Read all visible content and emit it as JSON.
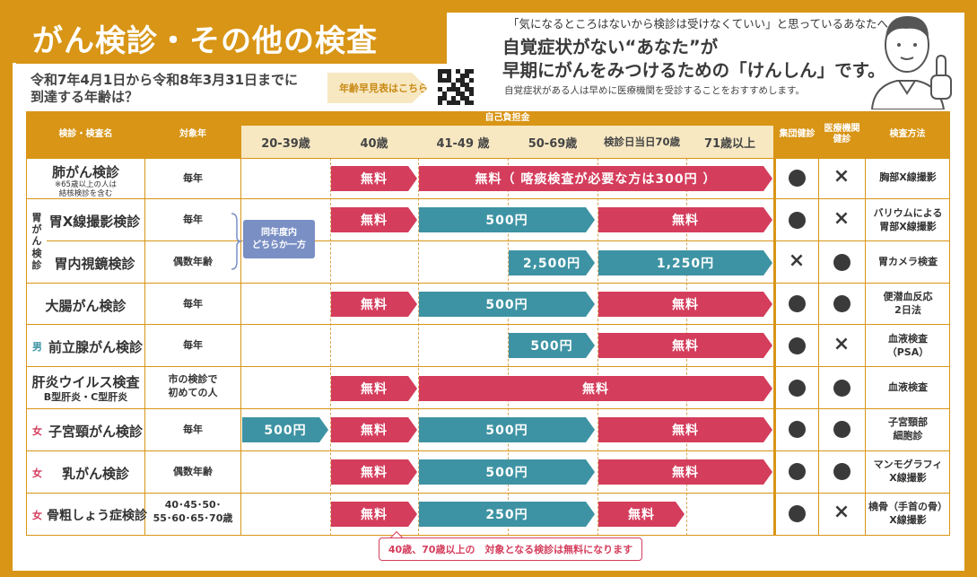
{
  "title": "がん検診・その他の検査",
  "header": {
    "top_line": "「気になるところはないから検診は受けなくていい」と思っているあなたへ",
    "line1": "自覚症状がない“あなた”が",
    "line2": "早期にがんをみつけるための「けんしん」です。",
    "note": "自覚症状がある人は早めに医療機関を受診することをおすすめします。"
  },
  "question": {
    "line1": "令和7年4月1日から令和8年3月31日までに",
    "line2": "到達する年齢は？"
  },
  "age_table_link": "年齢早見表はこちら",
  "table_header": {
    "exam_name": "検診・検査名",
    "target_year": "対象年",
    "self_pay": "自己負担金",
    "group": "集団健診",
    "clinic_line1": "医療機関",
    "clinic_line2": "健診",
    "method": "検査方法",
    "age_cols": [
      "20-39歳",
      "40歳",
      "41-49 歳",
      "50-69歳",
      "検診日当日70歳",
      "71歳以上"
    ]
  },
  "stomach_group_label": [
    "胃",
    "が",
    "ん",
    "検",
    "診"
  ],
  "bubble": [
    "同年度内",
    "どちらか一方"
  ],
  "rows": [
    {
      "name": "肺がん検診",
      "sub1": "※65歳以上の人は",
      "sub2": "結核検診を含む",
      "freq": "毎年",
      "group": "●",
      "clinic": "×",
      "method": [
        "胸部X線撮影"
      ]
    },
    {
      "name": "胃X線撮影検診",
      "freq": "毎年",
      "group": "●",
      "clinic": "×",
      "method": [
        "バリウムによる",
        "胃部X線撮影"
      ]
    },
    {
      "name": "胃内視鏡検診",
      "freq": "偶数年齢",
      "group": "×",
      "clinic": "●",
      "method": [
        "胃カメラ検査"
      ]
    },
    {
      "name": "大腸がん検診",
      "freq": "毎年",
      "group": "●",
      "clinic": "●",
      "method": [
        "便潜血反応",
        "2日法"
      ]
    },
    {
      "mark": "男",
      "name": "前立腺がん検診",
      "freq": "毎年",
      "group": "●",
      "clinic": "×",
      "method": [
        "血液検査",
        "（PSA）"
      ]
    },
    {
      "name": "肝炎ウイルス検査",
      "sub1": "B型肝炎・C型肝炎",
      "freq1": "市の検診で",
      "freq2": "初めての人",
      "group": "●",
      "clinic": "●",
      "method": [
        "血液検査"
      ]
    },
    {
      "mark": "女",
      "name": "子宮頸がん検診",
      "freq": "毎年",
      "group": "●",
      "clinic": "●",
      "method": [
        "子宮頸部",
        "細胞診"
      ]
    },
    {
      "mark": "女",
      "name": "乳がん検診",
      "freq": "偶数年齢",
      "group": "●",
      "clinic": "●",
      "method": [
        "マンモグラフィ",
        "X線撮影"
      ]
    },
    {
      "mark": "女",
      "name": "骨粗しょう症検診",
      "freq1": "40･45･50･",
      "freq2": "55･60･65･70歳",
      "group": "●",
      "clinic": "×",
      "method": [
        "橈骨（手首の骨）",
        "X線撮影"
      ]
    }
  ],
  "bars": {
    "r0a": "無料",
    "r0b": "無料（ 喀痰検査が必要な方は300円 ）",
    "r1a": "無料",
    "r1b": "500円",
    "r1c": "無料",
    "r2a": "2,500円",
    "r2b": "1,250円",
    "r3a": "無料",
    "r3b": "500円",
    "r3c": "無料",
    "r4a": "500円",
    "r4b": "無料",
    "r5a": "無料",
    "r5b": "無料",
    "r6a": "500円",
    "r6b": "無料",
    "r6c": "500円",
    "r6d": "無料",
    "r7a": "無料",
    "r7b": "500円",
    "r7c": "無料",
    "r8a": "無料",
    "r8b": "250円",
    "r8c": "無料"
  },
  "footnote": "40歳、70歳以上の　対象となる検診は無料になります",
  "colors": {
    "orange": "#d89516",
    "free_red": "#d43d5c",
    "paid_teal": "#3d93a3",
    "bubble_blue": "#7a8fc4"
  }
}
